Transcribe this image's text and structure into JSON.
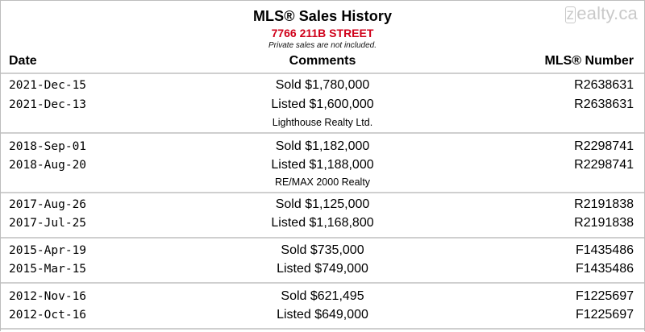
{
  "watermark": "zealty.ca",
  "title": "MLS® Sales History",
  "address": "7766 211B STREET",
  "note": "Private sales are not included.",
  "headers": {
    "date": "Date",
    "comments": "Comments",
    "mls": "MLS® Number"
  },
  "groups": [
    {
      "rows": [
        {
          "date": "2021-Dec-15",
          "comment": "Sold $1,780,000",
          "mls": "R2638631"
        },
        {
          "date": "2021-Dec-13",
          "comment": "Listed $1,600,000",
          "mls": "R2638631"
        }
      ],
      "agency": "Lighthouse Realty Ltd."
    },
    {
      "rows": [
        {
          "date": "2018-Sep-01",
          "comment": "Sold $1,182,000",
          "mls": "R2298741"
        },
        {
          "date": "2018-Aug-20",
          "comment": "Listed $1,188,000",
          "mls": "R2298741"
        }
      ],
      "agency": "RE/MAX 2000 Realty"
    },
    {
      "rows": [
        {
          "date": "2017-Aug-26",
          "comment": "Sold $1,125,000",
          "mls": "R2191838"
        },
        {
          "date": "2017-Jul-25",
          "comment": "Listed $1,168,800",
          "mls": "R2191838"
        }
      ],
      "agency": ""
    },
    {
      "rows": [
        {
          "date": "2015-Apr-19",
          "comment": "Sold $735,000",
          "mls": "F1435486"
        },
        {
          "date": "2015-Mar-15",
          "comment": "Listed $749,000",
          "mls": "F1435486"
        }
      ],
      "agency": ""
    },
    {
      "rows": [
        {
          "date": "2012-Nov-16",
          "comment": "Sold $621,495",
          "mls": "F1225697"
        },
        {
          "date": "2012-Oct-16",
          "comment": "Listed $649,000",
          "mls": "F1225697"
        }
      ],
      "agency": ""
    }
  ]
}
